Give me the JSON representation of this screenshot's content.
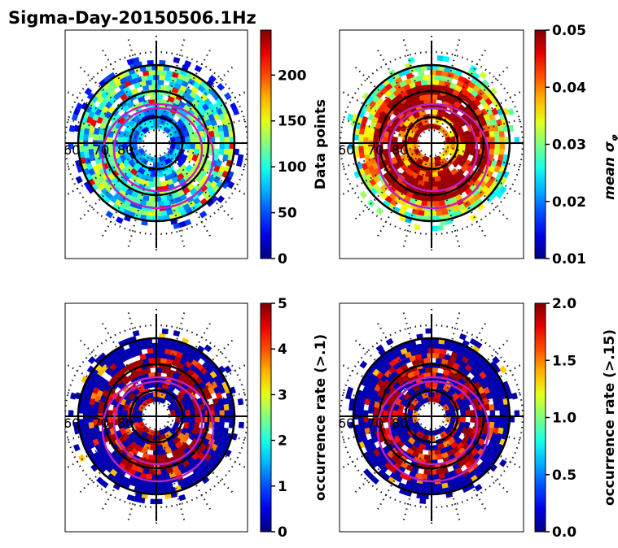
{
  "title": "Sigma-Day-20150506.1Hz",
  "chart_data": [
    {
      "type": "heatmap",
      "projection": "polar (magnetic latitude / MLT)",
      "colormap": "jet",
      "colorbar_label": "Data points",
      "clim": [
        0,
        249
      ],
      "colorbar_ticks": [
        0,
        50,
        100,
        150,
        200
      ],
      "colorbar_tick_labels": [
        "0",
        "50",
        "100",
        "150",
        "200"
      ],
      "lat_labels": [
        "60",
        "70",
        "80"
      ],
      "profile": "counts"
    },
    {
      "type": "heatmap",
      "projection": "polar (magnetic latitude / MLT)",
      "colormap": "jet",
      "colorbar_label": "mean σ",
      "colorbar_label_sub": "φ",
      "clim": [
        0.01,
        0.05
      ],
      "colorbar_ticks": [
        0.01,
        0.02,
        0.03,
        0.04,
        0.05
      ],
      "colorbar_tick_labels": [
        "0.01",
        "0.02",
        "0.03",
        "0.04",
        "0.05"
      ],
      "lat_labels": [
        "60",
        "70",
        "80"
      ],
      "profile": "sigma"
    },
    {
      "type": "heatmap",
      "projection": "polar (magnetic latitude / MLT)",
      "colormap": "jet",
      "colorbar_label": "occurrence rate (>.1)",
      "clim": [
        0,
        5
      ],
      "colorbar_ticks": [
        0,
        1,
        2,
        3,
        4,
        5
      ],
      "colorbar_tick_labels": [
        "0",
        "1",
        "2",
        "3",
        "4",
        "5"
      ],
      "lat_labels": [
        "60",
        "70",
        "80"
      ],
      "profile": "occ"
    },
    {
      "type": "heatmap",
      "projection": "polar (magnetic latitude / MLT)",
      "colormap": "jet",
      "colorbar_label": "occurrence rate (>.15)",
      "clim": [
        0,
        2
      ],
      "colorbar_ticks": [
        0,
        0.5,
        1,
        1.5,
        2
      ],
      "colorbar_tick_labels": [
        "0.0",
        "0.5",
        "1.0",
        "1.5",
        "2.0"
      ],
      "lat_labels": [
        "60",
        "70",
        "80"
      ],
      "profile": "occ"
    }
  ]
}
